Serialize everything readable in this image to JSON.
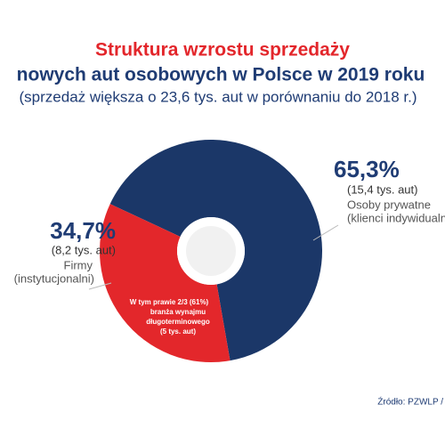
{
  "chart_data": {
    "type": "pie",
    "title": "Struktura wzrostu sprzedaży",
    "subtitle": "nowych aut osobowych w Polsce w 2019 roku",
    "note": "(sprzedaż większa o 23,6 tys. aut w porównaniu do 2018 r.)",
    "categories": [
      "Osoby prywatne",
      "Firmy"
    ],
    "category_notes": [
      "(klienci indywidualni)",
      "(instytucjonalni)"
    ],
    "values": [
      65.3,
      34.7
    ],
    "value_labels": [
      "65,3%",
      "34,7%"
    ],
    "count_labels": [
      "(15,4 tys. aut)",
      "(8,2 tys. aut)"
    ],
    "colors": [
      "#1b3768",
      "#e3272b"
    ],
    "annotation": [
      "W tym prawie 2/3 (61%)",
      "branża wynajmu",
      "długoterminowego",
      "(5 tys. aut)"
    ],
    "source": "Źródło: PZWLP /"
  }
}
